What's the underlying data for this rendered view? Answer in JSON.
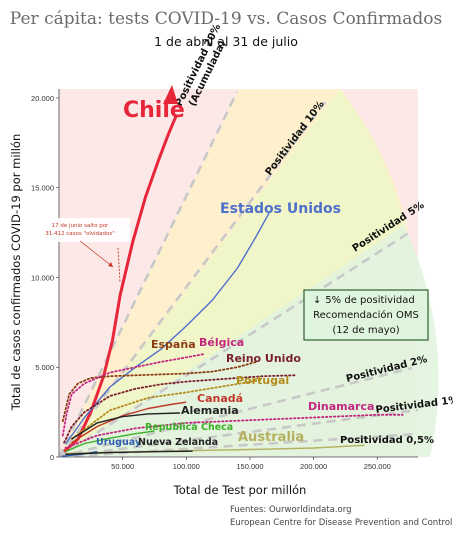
{
  "title": "Per cápita: tests COVID-19 vs. Casos Confirmados",
  "subtitle": "1 de abril al 31 de julio",
  "sources": [
    "Fuentes: Ourworldindata.org",
    "European Centre for Disease Prevention and Control"
  ],
  "note_chile": [
    "17 de junio salto por",
    "31.412 casos \"olvidados\""
  ],
  "oms_box": [
    "5% de positividad",
    "Recomendación OMS",
    "(12 de mayo)"
  ],
  "colors": {
    "chile": "#e8263a",
    "usa": "#4f6fc9",
    "spain": "#8a3a0e",
    "belgium": "#c2277f",
    "uk": "#7a1f2b",
    "portugal": "#b38c1e",
    "canada": "#c0392b",
    "germany": "#222222",
    "czech": "#3cb02a",
    "denmark": "#c2277f",
    "australia": "#b5b060",
    "uruguay": "#2f5fb0",
    "nz": "#222222",
    "positivity_line": "#c8c8c8"
  },
  "chart_data": {
    "type": "line",
    "title": "Per cápita: tests COVID-19 vs. Casos Confirmados",
    "subtitle": "1 de abril al 31 de julio",
    "xlabel": "Total de Test por millón",
    "ylabel": "Total de casos confirmados COVID-19 por millón",
    "xlim": [
      0,
      282000
    ],
    "ylim": [
      0,
      20500
    ],
    "xticks": [
      50000,
      100000,
      150000,
      200000,
      250000
    ],
    "xtick_labels": [
      "50.000",
      "100.000",
      "150.000",
      "200.000",
      "250.000"
    ],
    "yticks": [
      0,
      5000,
      10000,
      15000,
      20000
    ],
    "ytick_labels": [
      "0",
      "5.000",
      "10.000",
      "15.000",
      "20.000"
    ],
    "positivity_lines": [
      {
        "label": "Positividad 20%\n(Acumulada)",
        "rate": 0.2
      },
      {
        "label": "Positividad 10%",
        "rate": 0.1
      },
      {
        "label": "Positividad 5%",
        "rate": 0.05
      },
      {
        "label": "Positividad 2%",
        "rate": 0.02
      },
      {
        "label": "Positividad 1%",
        "rate": 0.01
      },
      {
        "label": "Positividad 0,5%",
        "rate": 0.005
      }
    ],
    "series": [
      {
        "name": "Chile",
        "color": "#e8263a",
        "dotted": false,
        "x": [
          4000,
          15000,
          25000,
          35000,
          42000,
          48000,
          58000,
          68000,
          78000,
          86000,
          92000
        ],
        "y": [
          300,
          1000,
          2500,
          4500,
          6500,
          9000,
          12000,
          14500,
          16500,
          18000,
          19000
        ]
      },
      {
        "name": "Estados Unidos",
        "color": "#4f6fc9",
        "dotted": false,
        "x": [
          5000,
          20000,
          40000,
          60000,
          80000,
          100000,
          120000,
          140000,
          155000,
          165000
        ],
        "y": [
          700,
          2200,
          3900,
          5000,
          6000,
          7300,
          8700,
          10500,
          12300,
          13600
        ]
      },
      {
        "name": "España",
        "color": "#8a3a0e",
        "dotted": true,
        "x": [
          3000,
          8000,
          15000,
          25000,
          40000,
          60000,
          80000,
          100000,
          120000,
          140000,
          155000
        ],
        "y": [
          2000,
          3500,
          4100,
          4400,
          4500,
          4550,
          4600,
          4650,
          4750,
          5000,
          5300
        ]
      },
      {
        "name": "Bélgica",
        "color": "#c2277f",
        "dotted": true,
        "x": [
          3000,
          6000,
          10000,
          20000,
          40000,
          60000,
          80000,
          100000,
          115000
        ],
        "y": [
          1200,
          2400,
          3500,
          4100,
          4700,
          5000,
          5300,
          5550,
          5750
        ]
      },
      {
        "name": "Reino Unido",
        "color": "#7a1f2b",
        "dotted": true,
        "x": [
          4000,
          10000,
          20000,
          40000,
          60000,
          80000,
          100000,
          120000,
          140000,
          160000,
          185000
        ],
        "y": [
          800,
          1700,
          2500,
          3400,
          3800,
          4050,
          4200,
          4300,
          4400,
          4500,
          4550
        ]
      },
      {
        "name": "Portugal",
        "color": "#b38c1e",
        "dotted": true,
        "x": [
          10000,
          40000,
          70000,
          100000,
          130000,
          160000
        ],
        "y": [
          1000,
          2600,
          3300,
          3600,
          3950,
          4300
        ]
      },
      {
        "name": "Canadá",
        "color": "#c0392b",
        "dotted": false,
        "x": [
          10000,
          30000,
          50000,
          70000,
          90000,
          100000
        ],
        "y": [
          800,
          1700,
          2300,
          2700,
          2950,
          3050
        ]
      },
      {
        "name": "Alemania",
        "color": "#222222",
        "dotted": false,
        "x": [
          10000,
          30000,
          50000,
          70000,
          95000
        ],
        "y": [
          1000,
          1900,
          2250,
          2400,
          2450
        ]
      },
      {
        "name": "Dinamarca",
        "color": "#c2277f",
        "dotted": true,
        "x": [
          5000,
          30000,
          60000,
          100000,
          150000,
          200000,
          250000,
          270000
        ],
        "y": [
          500,
          1200,
          1600,
          1900,
          2050,
          2200,
          2350,
          2350
        ]
      },
      {
        "name": "Republica Checa",
        "color": "#3cb02a",
        "dotted": false,
        "x": [
          5000,
          20000,
          40000,
          60000,
          75000
        ],
        "y": [
          300,
          750,
          1050,
          1300,
          1450
        ]
      },
      {
        "name": "Australia",
        "color": "#b5b060",
        "dotted": false,
        "x": [
          5000,
          50000,
          100000,
          150000,
          200000,
          240000
        ],
        "y": [
          200,
          280,
          350,
          420,
          500,
          650
        ]
      },
      {
        "name": "Uruguay",
        "color": "#2f5fb0",
        "dotted": false,
        "x": [
          2000,
          10000,
          20000,
          30000
        ],
        "y": [
          40,
          100,
          170,
          300
        ]
      },
      {
        "name": "Nueva Zelanda",
        "color": "#222222",
        "dotted": false,
        "x": [
          5000,
          40000,
          80000,
          100000,
          105000
        ],
        "y": [
          150,
          250,
          300,
          320,
          330
        ]
      }
    ]
  }
}
